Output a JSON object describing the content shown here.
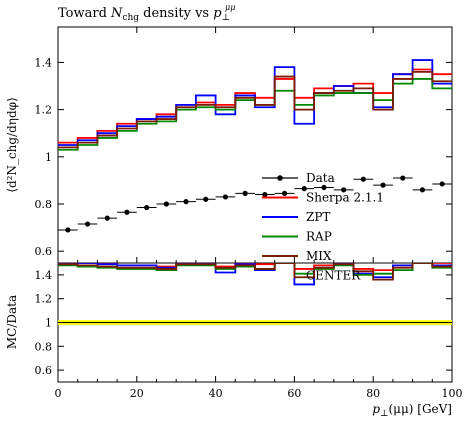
{
  "chart_data": {
    "type": "line",
    "title": "Toward N_chg density vs p_⊥^μμ",
    "title_parts": {
      "pre": "Toward ",
      "n": "N",
      "n_sub": "chg",
      "mid": " density vs ",
      "p": "p",
      "p_sub": "⊥",
      "p_sup": "μμ"
    },
    "xlabel": "p_⊥(μμ) [GeV]",
    "xlabel_parts": {
      "p": "p",
      "p_sub": "⊥",
      "rest": "(μμ) [GeV]"
    },
    "ylabel": "⟨d²N_chg/dηdφ⟩",
    "ratio_ylabel": "MC/Data",
    "xlim": [
      0,
      100
    ],
    "ylim": [
      0.55,
      1.55
    ],
    "ratio_ylim": [
      0.5,
      1.5
    ],
    "xticks": [
      0,
      20,
      40,
      60,
      80,
      100
    ],
    "yticks": [
      0.6,
      0.8,
      1,
      1.2,
      1.4
    ],
    "ratio_yticks": [
      0.6,
      0.8,
      1,
      1.2,
      1.4
    ],
    "x_edges": [
      0,
      5,
      10,
      15,
      20,
      25,
      30,
      35,
      40,
      45,
      50,
      55,
      60,
      65,
      70,
      75,
      80,
      85,
      90,
      95,
      100
    ],
    "legend_position": "center-right",
    "series": [
      {
        "name": "Data",
        "color": "#000000",
        "style": "points",
        "values": [
          0.69,
          0.715,
          0.74,
          0.765,
          0.785,
          0.8,
          0.81,
          0.82,
          0.83,
          0.845,
          0.84,
          0.845,
          0.865,
          0.87,
          0.86,
          0.905,
          0.88,
          0.91,
          0.86,
          0.885
        ],
        "ratio": [
          1,
          1,
          1,
          1,
          1,
          1,
          1,
          1,
          1,
          1,
          1,
          1,
          1,
          1,
          1,
          1,
          1,
          1,
          1,
          1
        ]
      },
      {
        "name": "Sherpa 2.1.1",
        "color": "#ff0000",
        "style": "histogram",
        "values": [
          1.06,
          1.08,
          1.11,
          1.14,
          1.16,
          1.18,
          1.22,
          1.23,
          1.22,
          1.27,
          1.25,
          1.33,
          1.25,
          1.29,
          1.3,
          1.31,
          1.27,
          1.35,
          1.37,
          1.35
        ],
        "ratio": [
          1.5,
          1.5,
          1.5,
          1.48,
          1.48,
          1.47,
          1.5,
          1.5,
          1.47,
          1.5,
          1.49,
          1.5,
          1.45,
          1.48,
          1.5,
          1.45,
          1.44,
          1.48,
          1.5,
          1.5
        ]
      },
      {
        "name": "ZPT",
        "color": "#0000ff",
        "style": "histogram",
        "values": [
          1.05,
          1.07,
          1.1,
          1.13,
          1.16,
          1.17,
          1.22,
          1.26,
          1.18,
          1.26,
          1.21,
          1.38,
          1.14,
          1.27,
          1.3,
          1.27,
          1.21,
          1.35,
          1.41,
          1.31
        ],
        "ratio": [
          1.5,
          1.5,
          1.49,
          1.48,
          1.48,
          1.46,
          1.5,
          1.5,
          1.42,
          1.49,
          1.44,
          1.5,
          1.32,
          1.46,
          1.5,
          1.41,
          1.38,
          1.48,
          1.5,
          1.48
        ]
      },
      {
        "name": "RAP",
        "color": "#008800",
        "style": "histogram",
        "values": [
          1.03,
          1.05,
          1.08,
          1.11,
          1.14,
          1.15,
          1.2,
          1.21,
          1.2,
          1.24,
          1.22,
          1.28,
          1.22,
          1.26,
          1.27,
          1.27,
          1.24,
          1.31,
          1.33,
          1.29
        ],
        "ratio": [
          1.48,
          1.47,
          1.46,
          1.45,
          1.45,
          1.44,
          1.48,
          1.48,
          1.45,
          1.47,
          1.45,
          1.5,
          1.41,
          1.45,
          1.48,
          1.4,
          1.41,
          1.44,
          1.5,
          1.46
        ]
      },
      {
        "name": "MIX",
        "color": "#7a1a00",
        "style": "histogram",
        "values": [
          1.04,
          1.06,
          1.09,
          1.12,
          1.15,
          1.16,
          1.21,
          1.22,
          1.21,
          1.25,
          1.22,
          1.34,
          1.2,
          1.27,
          1.28,
          1.29,
          1.2,
          1.33,
          1.36,
          1.32
        ],
        "ratio": [
          1.49,
          1.48,
          1.47,
          1.46,
          1.46,
          1.45,
          1.49,
          1.49,
          1.46,
          1.48,
          1.45,
          1.5,
          1.38,
          1.46,
          1.49,
          1.43,
          1.36,
          1.46,
          1.5,
          1.47
        ]
      }
    ],
    "extra_legend_entries": [
      "CENTER"
    ],
    "ratio_band": {
      "color": "#ffff00",
      "half_width": 0.02
    }
  }
}
